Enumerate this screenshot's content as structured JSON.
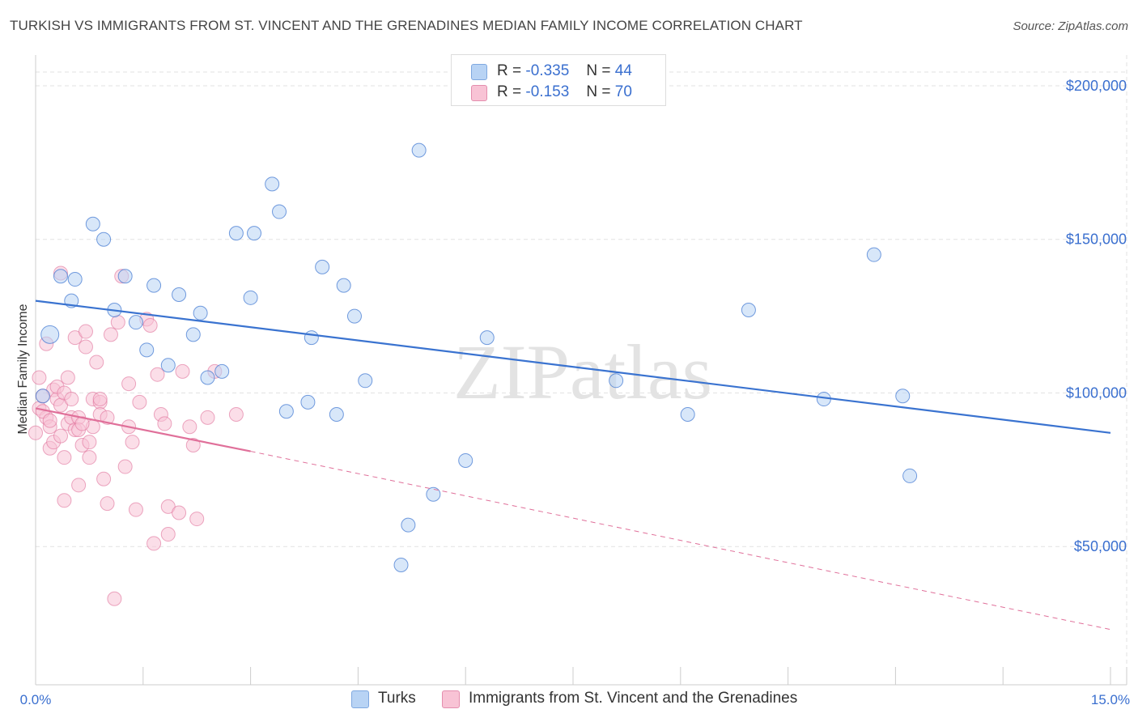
{
  "title": "TURKISH VS IMMIGRANTS FROM ST. VINCENT AND THE GRENADINES MEDIAN FAMILY INCOME CORRELATION CHART",
  "source": "Source: ZipAtlas.com",
  "watermark": "ZIPatlas",
  "colors": {
    "blue": "#3a73d0",
    "pink": "#e0709a",
    "blue_fill": "#b8d3f4",
    "pink_fill": "#f8c3d5",
    "value_text": "#3a6fcf"
  },
  "stats": [
    {
      "r_label": "R =",
      "r": "-0.335",
      "n_label": "N =",
      "n": "44"
    },
    {
      "r_label": "R =",
      "r": "-0.153",
      "n_label": "N =",
      "n": "70"
    }
  ],
  "legend": {
    "series1": "Turks",
    "series2": "Immigrants from St. Vincent and the Grenadines"
  },
  "chart_data": {
    "type": "scatter",
    "ylabel": "Median Family Income",
    "xlim": [
      0,
      15
    ],
    "ylim": [
      5000,
      210000
    ],
    "x_tick_labels": [
      "0.0%",
      "15.0%"
    ],
    "y_ticks": [
      {
        "value": 50000,
        "label": "$50,000"
      },
      {
        "value": 100000,
        "label": "$100,000"
      },
      {
        "value": 150000,
        "label": "$150,000"
      },
      {
        "value": 200000,
        "label": "$200,000"
      }
    ],
    "grid": true,
    "series": [
      {
        "name": "Turks",
        "trend": {
          "x": [
            0,
            15
          ],
          "y": [
            130000,
            87000
          ]
        },
        "points": [
          [
            0.2,
            119000
          ],
          [
            0.35,
            138000
          ],
          [
            0.5,
            130000
          ],
          [
            0.55,
            137000
          ],
          [
            0.8,
            155000
          ],
          [
            0.95,
            150000
          ],
          [
            1.1,
            127000
          ],
          [
            1.25,
            138000
          ],
          [
            1.4,
            123000
          ],
          [
            1.55,
            114000
          ],
          [
            1.65,
            135000
          ],
          [
            1.85,
            109000
          ],
          [
            2.0,
            132000
          ],
          [
            2.2,
            119000
          ],
          [
            2.3,
            126000
          ],
          [
            2.4,
            105000
          ],
          [
            2.6,
            107000
          ],
          [
            2.8,
            152000
          ],
          [
            3.0,
            131000
          ],
          [
            3.05,
            152000
          ],
          [
            3.3,
            168000
          ],
          [
            3.4,
            159000
          ],
          [
            3.5,
            94000
          ],
          [
            3.8,
            97000
          ],
          [
            3.85,
            118000
          ],
          [
            4.0,
            141000
          ],
          [
            4.2,
            93000
          ],
          [
            4.3,
            135000
          ],
          [
            4.45,
            125000
          ],
          [
            4.6,
            104000
          ],
          [
            5.1,
            44000
          ],
          [
            5.2,
            57000
          ],
          [
            5.35,
            179000
          ],
          [
            5.55,
            67000
          ],
          [
            6.0,
            78000
          ],
          [
            6.3,
            118000
          ],
          [
            8.1,
            104000
          ],
          [
            9.1,
            93000
          ],
          [
            9.95,
            127000
          ],
          [
            11.0,
            98000
          ],
          [
            11.7,
            145000
          ],
          [
            12.1,
            99000
          ],
          [
            12.2,
            73000
          ],
          [
            0.1,
            99000
          ]
        ]
      },
      {
        "name": "Immigrants from St. Vincent and the Grenadines",
        "trend": {
          "x": [
            0,
            3.0
          ],
          "y": [
            95000,
            81000
          ]
        },
        "trend_extension": {
          "x": [
            3.0,
            15
          ],
          "y": [
            81000,
            23000
          ]
        },
        "points": [
          [
            0.0,
            87000
          ],
          [
            0.05,
            95000
          ],
          [
            0.05,
            105000
          ],
          [
            0.1,
            99000
          ],
          [
            0.15,
            92000
          ],
          [
            0.15,
            116000
          ],
          [
            0.2,
            82000
          ],
          [
            0.2,
            89000
          ],
          [
            0.25,
            101000
          ],
          [
            0.3,
            98000
          ],
          [
            0.3,
            102000
          ],
          [
            0.35,
            139000
          ],
          [
            0.35,
            96000
          ],
          [
            0.4,
            79000
          ],
          [
            0.4,
            65000
          ],
          [
            0.45,
            90000
          ],
          [
            0.45,
            105000
          ],
          [
            0.5,
            92000
          ],
          [
            0.55,
            88000
          ],
          [
            0.55,
            118000
          ],
          [
            0.6,
            92000
          ],
          [
            0.6,
            70000
          ],
          [
            0.65,
            83000
          ],
          [
            0.7,
            115000
          ],
          [
            0.7,
            120000
          ],
          [
            0.75,
            79000
          ],
          [
            0.75,
            84000
          ],
          [
            0.8,
            89000
          ],
          [
            0.8,
            98000
          ],
          [
            0.85,
            110000
          ],
          [
            0.9,
            97000
          ],
          [
            0.9,
            93000
          ],
          [
            0.95,
            72000
          ],
          [
            1.0,
            64000
          ],
          [
            1.05,
            119000
          ],
          [
            1.1,
            33000
          ],
          [
            1.15,
            123000
          ],
          [
            1.2,
            138000
          ],
          [
            1.25,
            76000
          ],
          [
            1.3,
            103000
          ],
          [
            1.3,
            89000
          ],
          [
            1.35,
            84000
          ],
          [
            1.4,
            62000
          ],
          [
            1.45,
            97000
          ],
          [
            1.55,
            124000
          ],
          [
            1.6,
            122000
          ],
          [
            1.65,
            51000
          ],
          [
            1.7,
            106000
          ],
          [
            1.75,
            93000
          ],
          [
            1.8,
            90000
          ],
          [
            1.85,
            63000
          ],
          [
            1.85,
            54000
          ],
          [
            2.0,
            61000
          ],
          [
            2.05,
            107000
          ],
          [
            2.15,
            89000
          ],
          [
            2.2,
            83000
          ],
          [
            2.25,
            59000
          ],
          [
            2.4,
            92000
          ],
          [
            2.5,
            107000
          ],
          [
            2.8,
            93000
          ],
          [
            0.1,
            94000
          ],
          [
            0.2,
            91000
          ],
          [
            0.25,
            84000
          ],
          [
            0.35,
            86000
          ],
          [
            0.4,
            100000
          ],
          [
            0.5,
            98000
          ],
          [
            0.6,
            88000
          ],
          [
            0.65,
            90000
          ],
          [
            0.9,
            98000
          ],
          [
            1.0,
            92000
          ]
        ]
      }
    ]
  }
}
